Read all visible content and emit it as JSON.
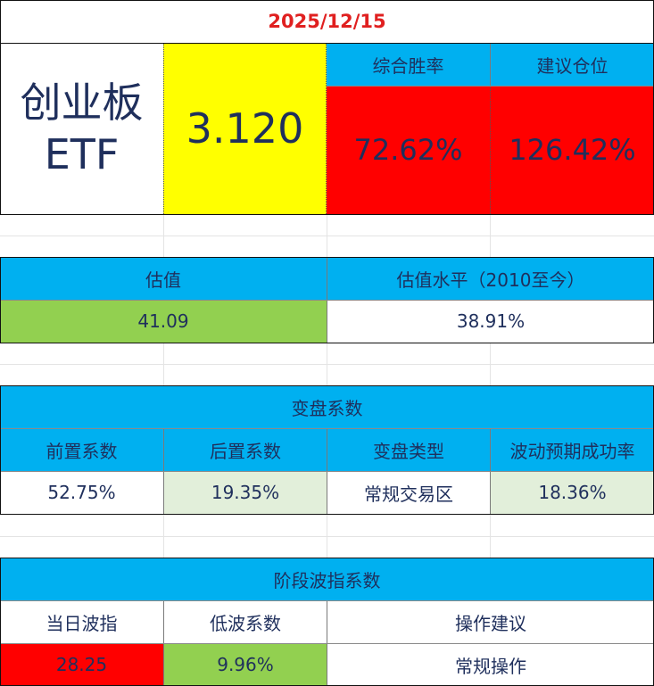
{
  "date": "2025/12/15",
  "fund": {
    "name_line1": "创业板",
    "name_line2": "ETF",
    "price": "3.120"
  },
  "summary": {
    "win_rate_label": "综合胜率",
    "win_rate_value": "72.62%",
    "position_label": "建议仓位",
    "position_value": "126.42%"
  },
  "valuation": {
    "label": "估值",
    "value": "41.09",
    "level_label": "估值水平（2010至今）",
    "level_value": "38.91%"
  },
  "turning": {
    "title": "变盘系数",
    "headers": [
      "前置系数",
      "后置系数",
      "变盘类型",
      "波动预期成功率"
    ],
    "values": [
      "52.75%",
      "19.35%",
      "常规交易区",
      "18.36%"
    ]
  },
  "wave": {
    "title": "阶段波指系数",
    "headers": [
      "当日波指",
      "低波系数",
      "操作建议"
    ],
    "values": [
      "28.25",
      "9.96%",
      "常规操作"
    ]
  },
  "colors": {
    "header_blue": "#00b0f0",
    "yellow": "#ffff00",
    "red": "#ff0000",
    "green": "#92d050",
    "light_green": "#e2efda",
    "date_red": "#e02020"
  }
}
